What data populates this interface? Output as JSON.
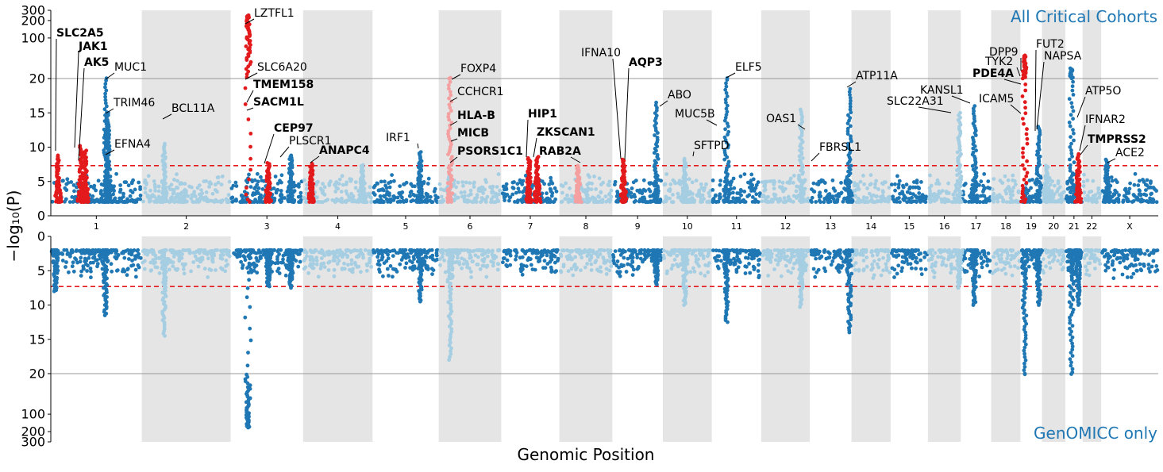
{
  "chart_data": {
    "type": "scatter",
    "subtype": "miami-plot",
    "xlabel": "Genomic Position",
    "ylabel": "−log₁₀(P)",
    "colors": {
      "dark": "#1f77b4",
      "light": "#a6cee3",
      "band": "#e5e5e5",
      "sig": "#e31a1c",
      "sig_light": "#f4a0a0",
      "threshold": "#e31a1c",
      "title": "#1f77b4"
    },
    "threshold": 7.3,
    "chromosomes": [
      {
        "name": "1",
        "size": 249
      },
      {
        "name": "2",
        "size": 243
      },
      {
        "name": "3",
        "size": 198
      },
      {
        "name": "4",
        "size": 190
      },
      {
        "name": "5",
        "size": 181
      },
      {
        "name": "6",
        "size": 171
      },
      {
        "name": "7",
        "size": 159
      },
      {
        "name": "8",
        "size": 145
      },
      {
        "name": "9",
        "size": 138
      },
      {
        "name": "10",
        "size": 134
      },
      {
        "name": "11",
        "size": 135
      },
      {
        "name": "12",
        "size": 133
      },
      {
        "name": "13",
        "size": 114
      },
      {
        "name": "14",
        "size": 107
      },
      {
        "name": "15",
        "size": 102
      },
      {
        "name": "16",
        "size": 90
      },
      {
        "name": "17",
        "size": 83
      },
      {
        "name": "18",
        "size": 80
      },
      {
        "name": "19",
        "size": 59
      },
      {
        "name": "20",
        "size": 64
      },
      {
        "name": "21",
        "size": 47
      },
      {
        "name": "22",
        "size": 51
      },
      {
        "name": "X",
        "size": 156
      }
    ],
    "panels": [
      {
        "id": "top",
        "title": "All Critical Cohorts",
        "yticks": [
          "0",
          "5",
          "10",
          "15",
          "20",
          "100",
          "200",
          "300"
        ],
        "peaks": [
          {
            "chr": "1",
            "pos": 0.08,
            "max": 8.8,
            "sig": true
          },
          {
            "chr": "1",
            "pos": 0.33,
            "max": 10.2,
            "sig": true
          },
          {
            "chr": "1",
            "pos": 0.38,
            "max": 9.5,
            "sig": true
          },
          {
            "chr": "1",
            "pos": 0.6,
            "max": 20.2
          },
          {
            "chr": "1",
            "pos": 0.62,
            "max": 15
          },
          {
            "chr": "1",
            "pos": 0.63,
            "max": 13
          },
          {
            "chr": "2",
            "pos": 0.25,
            "max": 10.5
          },
          {
            "chr": "3",
            "pos": 0.24,
            "max": 246,
            "sig": true
          },
          {
            "chr": "3",
            "pos": 0.52,
            "max": 7.7,
            "sig": true
          },
          {
            "chr": "3",
            "pos": 0.83,
            "max": 8.8
          },
          {
            "chr": "4",
            "pos": 0.12,
            "max": 7.6,
            "sig": true
          },
          {
            "chr": "4",
            "pos": 0.85,
            "max": 7.4
          },
          {
            "chr": "5",
            "pos": 0.72,
            "max": 9.3
          },
          {
            "chr": "6",
            "pos": 0.18,
            "max": 20.5,
            "sig": true,
            "light": true
          },
          {
            "chr": "7",
            "pos": 0.48,
            "max": 8.4,
            "sig": true
          },
          {
            "chr": "7",
            "pos": 0.62,
            "max": 8.6,
            "sig": true
          },
          {
            "chr": "8",
            "pos": 0.35,
            "max": 7.3,
            "sig": true,
            "light": true
          },
          {
            "chr": "9",
            "pos": 0.22,
            "max": 8.2,
            "sig": true
          },
          {
            "chr": "9",
            "pos": 0.87,
            "max": 16.5
          },
          {
            "chr": "10",
            "pos": 0.45,
            "max": 8.3
          },
          {
            "chr": "11",
            "pos": 0.3,
            "max": 20.3
          },
          {
            "chr": "12",
            "pos": 0.82,
            "max": 15.5
          },
          {
            "chr": "13",
            "pos": 0.95,
            "max": 18.5
          },
          {
            "chr": "16",
            "pos": 0.95,
            "max": 15
          },
          {
            "chr": "17",
            "pos": 0.45,
            "max": 16
          },
          {
            "chr": "19",
            "pos": 0.2,
            "max": 50,
            "sig": true
          },
          {
            "chr": "19",
            "pos": 0.85,
            "max": 13
          },
          {
            "chr": "20",
            "pos": 0.2,
            "max": 7.3
          },
          {
            "chr": "21",
            "pos": 0.35,
            "max": 30
          },
          {
            "chr": "21",
            "pos": 0.75,
            "max": 9,
            "sig": true
          },
          {
            "chr": "X",
            "pos": 0.1,
            "max": 8.2
          }
        ],
        "labels": [
          {
            "text": "SLC2A5",
            "bold": true
          },
          {
            "text": "JAK1",
            "bold": true
          },
          {
            "text": "AK5",
            "bold": true
          },
          {
            "text": "MUC1",
            "bold": false
          },
          {
            "text": "TRIM46",
            "bold": false
          },
          {
            "text": "EFNA4",
            "bold": false
          },
          {
            "text": "BCL11A",
            "bold": false
          },
          {
            "text": "LZTFL1",
            "bold": false
          },
          {
            "text": "SLC6A20",
            "bold": false
          },
          {
            "text": "TMEM158",
            "bold": true
          },
          {
            "text": "SACM1L",
            "bold": true
          },
          {
            "text": "CEP97",
            "bold": true
          },
          {
            "text": "PLSCR1",
            "bold": false
          },
          {
            "text": "ANAPC4",
            "bold": true
          },
          {
            "text": "IRF1",
            "bold": false
          },
          {
            "text": "FOXP4",
            "bold": false
          },
          {
            "text": "CCHCR1",
            "bold": false
          },
          {
            "text": "HLA-B",
            "bold": true
          },
          {
            "text": "MICB",
            "bold": true
          },
          {
            "text": "PSORS1C1",
            "bold": true
          },
          {
            "text": "HIP1",
            "bold": true
          },
          {
            "text": "ZKSCAN1",
            "bold": true
          },
          {
            "text": "RAB2A",
            "bold": true
          },
          {
            "text": "IFNA10",
            "bold": false
          },
          {
            "text": "AQP3",
            "bold": true
          },
          {
            "text": "ABO",
            "bold": false
          },
          {
            "text": "MUC5B",
            "bold": false
          },
          {
            "text": "SFTPD",
            "bold": false
          },
          {
            "text": "ELF5",
            "bold": false
          },
          {
            "text": "OAS1",
            "bold": false
          },
          {
            "text": "FBRSL1",
            "bold": false
          },
          {
            "text": "ATP11A",
            "bold": false
          },
          {
            "text": "KANSL1",
            "bold": false
          },
          {
            "text": "SLC22A31",
            "bold": false
          },
          {
            "text": "DPP9",
            "bold": false
          },
          {
            "text": "TYK2",
            "bold": false
          },
          {
            "text": "PDE4A",
            "bold": true
          },
          {
            "text": "ICAM5",
            "bold": false
          },
          {
            "text": "FUT2",
            "bold": false
          },
          {
            "text": "NAPSA",
            "bold": false
          },
          {
            "text": "ATP5O",
            "bold": false
          },
          {
            "text": "IFNAR2",
            "bold": false
          },
          {
            "text": "TMPRSS2",
            "bold": true
          },
          {
            "text": "ACE2",
            "bold": false
          }
        ]
      },
      {
        "id": "bottom",
        "title": "GenOMICC only",
        "yticks": [
          "0",
          "5",
          "10",
          "15",
          "20",
          "100",
          "200",
          "300"
        ],
        "peaks": [
          {
            "chr": "1",
            "pos": 0.05,
            "max": 8
          },
          {
            "chr": "1",
            "pos": 0.6,
            "max": 11.5
          },
          {
            "chr": "2",
            "pos": 0.25,
            "max": 14.5
          },
          {
            "chr": "3",
            "pos": 0.24,
            "max": 170
          },
          {
            "chr": "3",
            "pos": 0.52,
            "max": 7.3
          },
          {
            "chr": "3",
            "pos": 0.83,
            "max": 7.5
          },
          {
            "chr": "5",
            "pos": 0.72,
            "max": 9.5
          },
          {
            "chr": "6",
            "pos": 0.18,
            "max": 18
          },
          {
            "chr": "9",
            "pos": 0.87,
            "max": 7
          },
          {
            "chr": "10",
            "pos": 0.45,
            "max": 10
          },
          {
            "chr": "11",
            "pos": 0.3,
            "max": 12.5
          },
          {
            "chr": "12",
            "pos": 0.82,
            "max": 10.3
          },
          {
            "chr": "13",
            "pos": 0.95,
            "max": 14
          },
          {
            "chr": "16",
            "pos": 0.95,
            "max": 7.5
          },
          {
            "chr": "17",
            "pos": 0.45,
            "max": 10
          },
          {
            "chr": "19",
            "pos": 0.2,
            "max": 20.5
          },
          {
            "chr": "19",
            "pos": 0.85,
            "max": 10
          },
          {
            "chr": "21",
            "pos": 0.35,
            "max": 20.3
          },
          {
            "chr": "21",
            "pos": 0.75,
            "max": 10
          }
        ]
      }
    ]
  }
}
